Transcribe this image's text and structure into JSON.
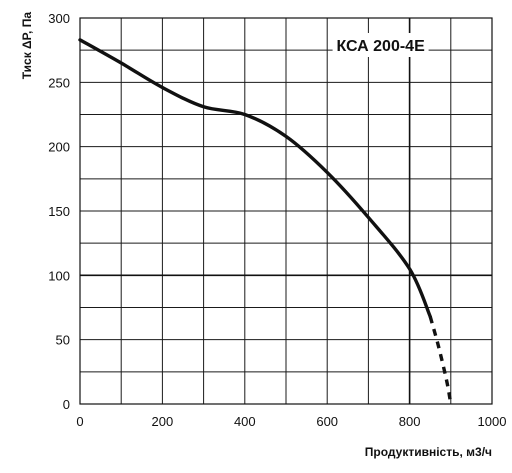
{
  "chart_data": {
    "type": "line",
    "title": "КСА 200-4E",
    "xlabel": "Продуктивність, м3/ч",
    "ylabel": "Тиск ΔР, Па",
    "xlim": [
      0,
      1000
    ],
    "ylim": [
      0,
      300
    ],
    "x_ticks": [
      "0",
      "200",
      "400",
      "600",
      "800",
      "1000"
    ],
    "y_ticks": [
      "0",
      "50",
      "100",
      "150",
      "200",
      "250",
      "300"
    ],
    "grid": true,
    "x_grid_step": 100,
    "y_grid_step": 25,
    "reference_lines": {
      "x": 800,
      "y": 100
    },
    "series": [
      {
        "style": "solid",
        "x": [
          0,
          100,
          200,
          300,
          400,
          500,
          600,
          700,
          800,
          850
        ],
        "y": [
          283,
          265,
          246,
          231,
          225,
          208,
          180,
          145,
          105,
          68
        ]
      },
      {
        "style": "dashed",
        "x": [
          850,
          870,
          890,
          900
        ],
        "y": [
          68,
          45,
          18,
          0
        ]
      }
    ],
    "colors": {
      "line": "#111111",
      "grid": "#1a1a1a",
      "background": "#ffffff"
    }
  }
}
